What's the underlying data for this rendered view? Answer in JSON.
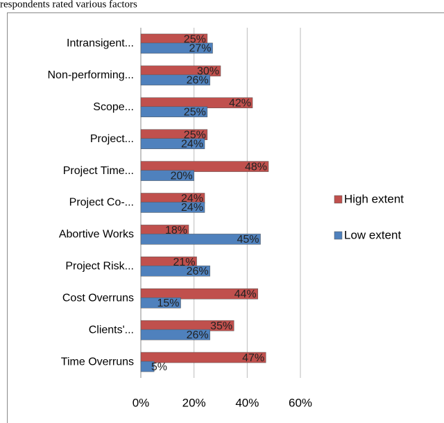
{
  "chart_data": {
    "type": "bar",
    "orientation": "horizontal",
    "title": "respondents rated various factors",
    "categories": [
      "Intransigent...",
      "Non-performing...",
      "Scope...",
      "Project...",
      "Project Time...",
      "Project Co-...",
      "Abortive Works",
      "Project Risk...",
      "Cost Overruns",
      "Clients'...",
      "Time Overruns"
    ],
    "series": [
      {
        "name": "High extent",
        "color": "#c0504d",
        "values": [
          25,
          30,
          42,
          25,
          48,
          24,
          18,
          21,
          44,
          35,
          47
        ],
        "value_labels": [
          "25%",
          "30%",
          "42%",
          "25%",
          "48%",
          "24%",
          "18%",
          "21%",
          "44%",
          "35%",
          "47%"
        ]
      },
      {
        "name": "Low extent",
        "color": "#4f81bd",
        "values": [
          27,
          26,
          25,
          24,
          20,
          24,
          45,
          26,
          15,
          26,
          5
        ],
        "value_labels": [
          "27%",
          "26%",
          "25%",
          "24%",
          "20%",
          "24%",
          "45%",
          "26%",
          "15%",
          "26%",
          "5%"
        ]
      }
    ],
    "xlim": [
      0,
      60
    ],
    "xticks": [
      {
        "value": 0,
        "label": "0%"
      },
      {
        "value": 20,
        "label": "20%"
      },
      {
        "value": 40,
        "label": "40%"
      },
      {
        "value": 60,
        "label": "60%"
      }
    ],
    "grid": true,
    "legend": "right"
  }
}
